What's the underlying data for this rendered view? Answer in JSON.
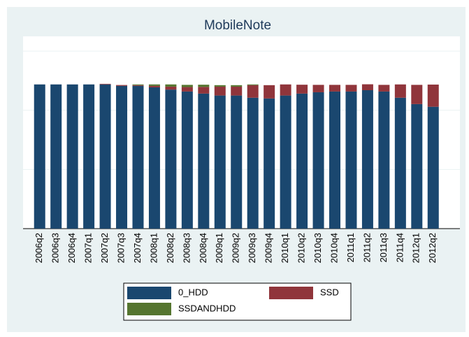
{
  "chart_data": {
    "type": "stacked_bar",
    "title": "MobileNote",
    "categories": [
      "2006q2",
      "2006q3",
      "2006q4",
      "2007q1",
      "2007q2",
      "2007q3",
      "2007q4",
      "2008q1",
      "2008q2",
      "2008q3",
      "2008q4",
      "2009q1",
      "2009q2",
      "2009q3",
      "2009q4",
      "2010q1",
      "2010q2",
      "2010q3",
      "2010q4",
      "2011q1",
      "2011q2",
      "2011q3",
      "2011q4",
      "2012q1",
      "2012q2"
    ],
    "series": [
      {
        "name": "0_HDD",
        "color": "#1a476f",
        "values": [
          0.975,
          0.975,
          0.975,
          0.975,
          0.975,
          0.965,
          0.965,
          0.955,
          0.94,
          0.927,
          0.913,
          0.9,
          0.9,
          0.885,
          0.88,
          0.9,
          0.913,
          0.922,
          0.927,
          0.927,
          0.936,
          0.927,
          0.885,
          0.842,
          0.824
        ]
      },
      {
        "name": "SSD",
        "color": "#90353b",
        "values": [
          0,
          0,
          0,
          0,
          0.004,
          0.006,
          0.005,
          0.01,
          0.02,
          0.03,
          0.045,
          0.06,
          0.06,
          0.085,
          0.09,
          0.075,
          0.06,
          0.05,
          0.045,
          0.045,
          0.04,
          0.045,
          0.09,
          0.13,
          0.15
        ]
      },
      {
        "name": "SSDANDHDD",
        "color": "#55752f",
        "values": [
          0,
          0,
          0,
          0,
          0,
          0,
          0.005,
          0.01,
          0.015,
          0.015,
          0.015,
          0.01,
          0.01,
          0.005,
          0,
          0,
          0,
          0,
          0,
          0,
          0,
          0,
          0,
          0,
          0
        ]
      }
    ],
    "ylim": [
      0,
      1.3
    ],
    "yticks": [
      0,
      0.4,
      0.8,
      1.2
    ],
    "grid": true
  }
}
